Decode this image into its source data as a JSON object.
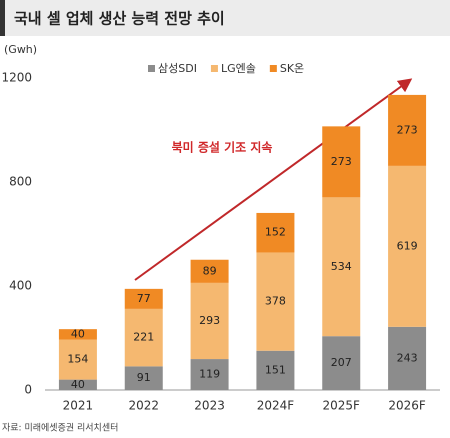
{
  "chart_data": {
    "type": "stacked_bar",
    "title": "국내 셀 업체 생산 능력 전망 추이",
    "y_axis_label": "(Gwh)",
    "annotation": "북미 증설 기조 지속",
    "source": "자료: 미래에셋증권 리서치센터",
    "categories": [
      "2021",
      "2022",
      "2023",
      "2024F",
      "2025F",
      "2026F"
    ],
    "series": [
      {
        "name": "삼성SDI",
        "color": "#8c8c8c",
        "values": [
          40,
          91,
          119,
          151,
          207,
          243
        ]
      },
      {
        "name": "LG엔솔",
        "color": "#f5b870",
        "values": [
          154,
          221,
          293,
          378,
          534,
          619
        ]
      },
      {
        "name": "SK온",
        "color": "#f08a24",
        "values": [
          40,
          77,
          89,
          152,
          273,
          273
        ]
      }
    ],
    "ylim": [
      0,
      1200
    ],
    "yticks": [
      0,
      400,
      800,
      1200
    ],
    "grid": false
  }
}
